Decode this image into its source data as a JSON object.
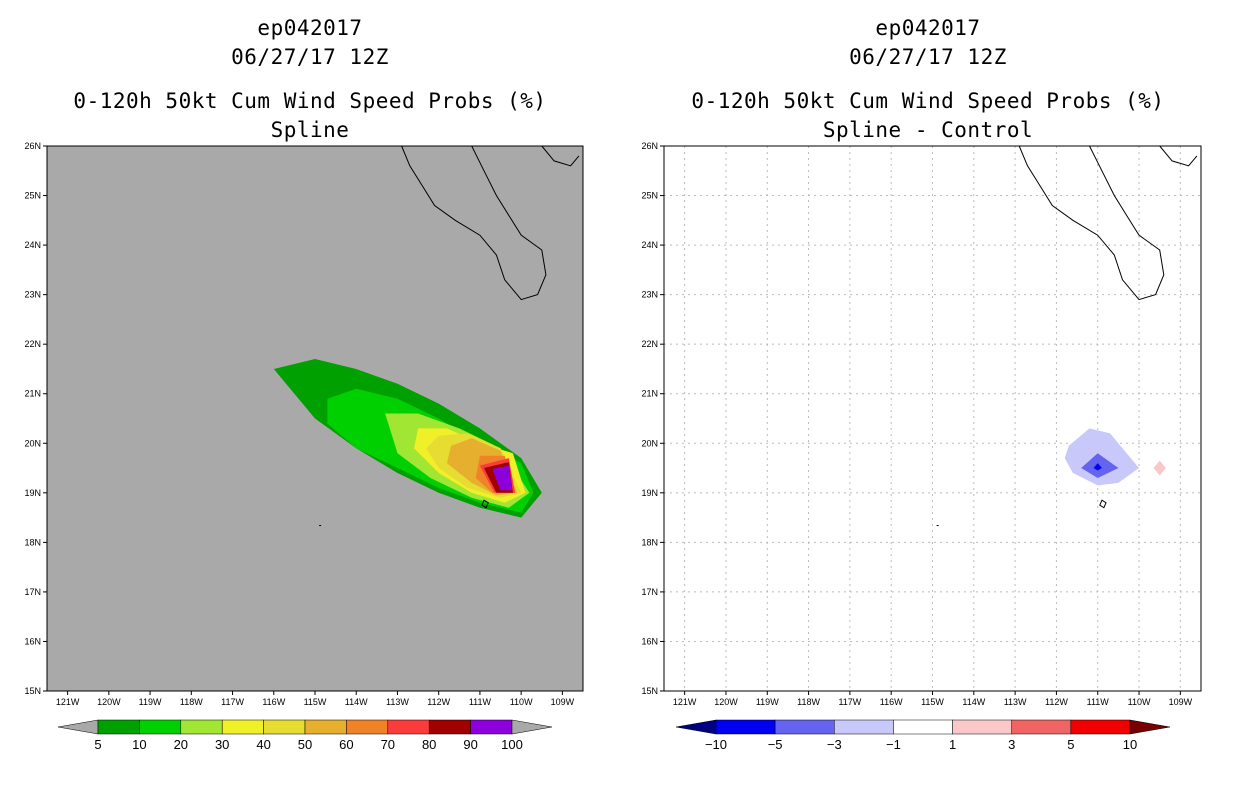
{
  "chart_data": [
    {
      "type": "contour-map",
      "storm_id": "ep042017",
      "date": "06/27/17 12Z",
      "title": "0-120h 50kt Cum Wind Speed Probs (%)",
      "subtitle": "Spline",
      "lon_range": [
        -121.5,
        -108.5
      ],
      "lat_range": [
        15,
        26
      ],
      "lon_ticks": [
        "121W",
        "120W",
        "119W",
        "118W",
        "117W",
        "116W",
        "115W",
        "114W",
        "113W",
        "112W",
        "111W",
        "110W",
        "109W"
      ],
      "lat_ticks": [
        "15N",
        "16N",
        "17N",
        "18N",
        "19N",
        "20N",
        "21N",
        "22N",
        "23N",
        "24N",
        "25N",
        "26N"
      ],
      "background": "#a9a9a9",
      "grid": false,
      "colorbar": {
        "labels": [
          "5",
          "10",
          "20",
          "30",
          "40",
          "50",
          "60",
          "70",
          "80",
          "90",
          "100"
        ],
        "colors": [
          "#a9a9a9",
          "#00a000",
          "#00d000",
          "#a0e632",
          "#f0f028",
          "#e6dc32",
          "#e6af2d",
          "#f08228",
          "#fa3c3c",
          "#a00000",
          "#8c00dc",
          "#a9a9a9"
        ]
      },
      "contours": [
        {
          "level": 5,
          "polygon": [
            [
              -116.0,
              21.5
            ],
            [
              -115.0,
              21.7
            ],
            [
              -114.0,
              21.5
            ],
            [
              -113.0,
              21.2
            ],
            [
              -112.0,
              20.8
            ],
            [
              -111.0,
              20.3
            ],
            [
              -110.0,
              19.7
            ],
            [
              -109.5,
              19.0
            ],
            [
              -110.0,
              18.5
            ],
            [
              -111.0,
              18.7
            ],
            [
              -112.0,
              19.0
            ],
            [
              -113.0,
              19.4
            ],
            [
              -114.0,
              19.9
            ],
            [
              -115.0,
              20.5
            ]
          ]
        },
        {
          "level": 10,
          "polygon": [
            [
              -114.7,
              20.9
            ],
            [
              -114.0,
              21.1
            ],
            [
              -113.0,
              20.9
            ],
            [
              -112.0,
              20.5
            ],
            [
              -111.0,
              20.0
            ],
            [
              -110.0,
              19.6
            ],
            [
              -109.7,
              19.0
            ],
            [
              -110.0,
              18.6
            ],
            [
              -111.0,
              18.8
            ],
            [
              -112.0,
              19.1
            ],
            [
              -113.0,
              19.5
            ],
            [
              -114.0,
              19.9
            ],
            [
              -114.7,
              20.4
            ]
          ]
        },
        {
          "level": 20,
          "polygon": [
            [
              -113.3,
              20.6
            ],
            [
              -112.5,
              20.6
            ],
            [
              -111.5,
              20.3
            ],
            [
              -110.5,
              19.9
            ],
            [
              -109.8,
              19.0
            ],
            [
              -110.3,
              18.7
            ],
            [
              -111.2,
              18.9
            ],
            [
              -112.2,
              19.3
            ],
            [
              -113.0,
              19.8
            ]
          ]
        },
        {
          "level": 30,
          "polygon": [
            [
              -112.5,
              20.3
            ],
            [
              -111.8,
              20.3
            ],
            [
              -111.0,
              20.0
            ],
            [
              -110.2,
              19.8
            ],
            [
              -109.9,
              19.0
            ],
            [
              -110.4,
              18.8
            ],
            [
              -111.2,
              19.0
            ],
            [
              -112.0,
              19.4
            ],
            [
              -112.6,
              19.9
            ]
          ]
        },
        {
          "level": 40,
          "polygon": [
            [
              -112.0,
              20.15
            ],
            [
              -111.3,
              20.2
            ],
            [
              -110.5,
              19.9
            ],
            [
              -110.0,
              19.0
            ],
            [
              -110.5,
              18.9
            ],
            [
              -111.3,
              19.1
            ],
            [
              -112.0,
              19.5
            ],
            [
              -112.3,
              19.9
            ]
          ]
        },
        {
          "level": 50,
          "polygon": [
            [
              -111.7,
              19.95
            ],
            [
              -111.2,
              20.1
            ],
            [
              -110.5,
              19.85
            ],
            [
              -110.1,
              19.0
            ],
            [
              -110.6,
              18.95
            ],
            [
              -111.2,
              19.2
            ],
            [
              -111.8,
              19.6
            ]
          ]
        },
        {
          "level": 60,
          "polygon": [
            [
              -111.0,
              19.75
            ],
            [
              -110.4,
              19.75
            ],
            [
              -110.15,
              19.0
            ],
            [
              -110.7,
              19.0
            ],
            [
              -111.1,
              19.3
            ]
          ]
        },
        {
          "level": 70,
          "polygon": [
            [
              -111.0,
              19.55
            ],
            [
              -110.3,
              19.7
            ],
            [
              -110.15,
              19.0
            ],
            [
              -110.65,
              19.0
            ]
          ]
        },
        {
          "level": 80,
          "polygon": [
            [
              -110.9,
              19.5
            ],
            [
              -110.3,
              19.62
            ],
            [
              -110.2,
              19.0
            ],
            [
              -110.6,
              19.0
            ]
          ]
        },
        {
          "level": 90,
          "polygon": [
            [
              -110.7,
              19.48
            ],
            [
              -110.3,
              19.55
            ],
            [
              -110.22,
              19.05
            ],
            [
              -110.5,
              19.05
            ]
          ]
        }
      ]
    },
    {
      "type": "contour-map",
      "storm_id": "ep042017",
      "date": "06/27/17 12Z",
      "title": "0-120h 50kt Cum Wind Speed Probs (%)",
      "subtitle": "Spline - Control",
      "lon_range": [
        -121.5,
        -108.5
      ],
      "lat_range": [
        15,
        26
      ],
      "lon_ticks": [
        "121W",
        "120W",
        "119W",
        "118W",
        "117W",
        "116W",
        "115W",
        "114W",
        "113W",
        "112W",
        "111W",
        "110W",
        "109W"
      ],
      "lat_ticks": [
        "15N",
        "16N",
        "17N",
        "18N",
        "19N",
        "20N",
        "21N",
        "22N",
        "23N",
        "24N",
        "25N",
        "26N"
      ],
      "background": "#ffffff",
      "grid": true,
      "colorbar": {
        "labels": [
          "-10",
          "-5",
          "-3",
          "-1",
          "1",
          "3",
          "5",
          "10"
        ],
        "colors": [
          "#000082",
          "#0000f0",
          "#6464f0",
          "#c8c8fa",
          "#ffffff",
          "#fac8c8",
          "#f06464",
          "#f00000",
          "#780000"
        ]
      },
      "contours": [
        {
          "level": -1,
          "polygon": [
            [
              -111.7,
              19.95
            ],
            [
              -111.2,
              20.3
            ],
            [
              -110.7,
              20.2
            ],
            [
              -110.3,
              19.8
            ],
            [
              -110.0,
              19.5
            ],
            [
              -110.5,
              19.2
            ],
            [
              -111.0,
              19.15
            ],
            [
              -111.6,
              19.4
            ],
            [
              -111.8,
              19.7
            ]
          ]
        },
        {
          "level": -3,
          "polygon": [
            [
              -111.0,
              19.8
            ],
            [
              -110.5,
              19.5
            ],
            [
              -111.0,
              19.3
            ],
            [
              -111.4,
              19.5
            ]
          ]
        },
        {
          "level": -5,
          "polygon": [
            [
              -111.0,
              19.6
            ],
            [
              -110.9,
              19.5
            ],
            [
              -111.0,
              19.45
            ],
            [
              -111.1,
              19.5
            ]
          ]
        },
        {
          "level": 1,
          "polygon": [
            [
              -109.5,
              19.65
            ],
            [
              -109.35,
              19.5
            ],
            [
              -109.5,
              19.35
            ],
            [
              -109.65,
              19.5
            ]
          ]
        }
      ]
    }
  ]
}
